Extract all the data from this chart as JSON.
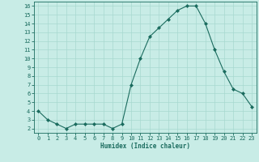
{
  "x": [
    0,
    1,
    2,
    3,
    4,
    5,
    6,
    7,
    8,
    9,
    10,
    11,
    12,
    13,
    14,
    15,
    16,
    17,
    18,
    19,
    20,
    21,
    22,
    23
  ],
  "y": [
    4,
    3,
    2.5,
    2,
    2.5,
    2.5,
    2.5,
    2.5,
    2,
    2.5,
    7,
    10,
    12.5,
    13.5,
    14.5,
    15.5,
    16,
    16,
    14,
    11,
    8.5,
    6.5,
    6,
    4.5
  ],
  "line_color": "#1a6b5e",
  "marker": "D",
  "marker_size": 2,
  "xlabel": "Humidex (Indice chaleur)",
  "xlim": [
    -0.5,
    23.5
  ],
  "ylim": [
    1.5,
    16.5
  ],
  "yticks": [
    2,
    3,
    4,
    5,
    6,
    7,
    8,
    9,
    10,
    11,
    12,
    13,
    14,
    15,
    16
  ],
  "xticks": [
    0,
    1,
    2,
    3,
    4,
    5,
    6,
    7,
    8,
    9,
    10,
    11,
    12,
    13,
    14,
    15,
    16,
    17,
    18,
    19,
    20,
    21,
    22,
    23
  ],
  "background_color": "#c8ece6",
  "grid_color": "#a8d8d0",
  "line_dark": "#1a6b5e",
  "xlabel_fontsize": 5.5,
  "tick_fontsize": 5
}
